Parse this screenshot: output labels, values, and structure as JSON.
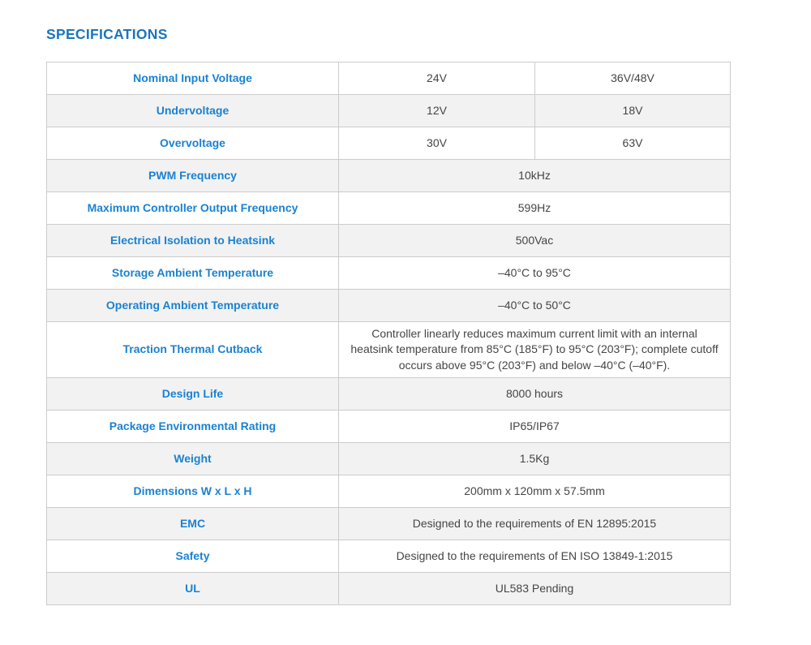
{
  "page": {
    "title": "SPECIFICATIONS"
  },
  "colors": {
    "heading": "#1b75bc",
    "label": "#1a82d2",
    "value": "#454545",
    "row_alt": "#f2f2f2",
    "border": "#cccccc"
  },
  "table": {
    "rows": [
      {
        "label": "Nominal Input Voltage",
        "values": [
          "24V",
          "36V/48V"
        ]
      },
      {
        "label": "Undervoltage",
        "values": [
          "12V",
          "18V"
        ]
      },
      {
        "label": "Overvoltage",
        "values": [
          "30V",
          "63V"
        ]
      },
      {
        "label": "PWM Frequency",
        "values": [
          "10kHz"
        ]
      },
      {
        "label": "Maximum Controller Output Frequency",
        "values": [
          "599Hz"
        ]
      },
      {
        "label": "Electrical Isolation to Heatsink",
        "values": [
          "500Vac"
        ]
      },
      {
        "label": "Storage Ambient Temperature",
        "values": [
          "–40°C to 95°C"
        ]
      },
      {
        "label": "Operating Ambient Temperature",
        "values": [
          "–40°C to 50°C"
        ]
      },
      {
        "label": "Traction Thermal Cutback",
        "values": [
          "Controller linearly reduces maximum current limit with an internal heatsink temperature from 85°C (185°F) to 95°C (203°F); complete cutoff occurs above 95°C (203°F) and below –40°C (–40°F)."
        ]
      },
      {
        "label": "Design Life",
        "values": [
          "8000 hours"
        ]
      },
      {
        "label": "Package Environmental Rating",
        "values": [
          "IP65/IP67"
        ]
      },
      {
        "label": "Weight",
        "values": [
          "1.5Kg"
        ]
      },
      {
        "label": "Dimensions W x L x H",
        "values": [
          "200mm x 120mm x 57.5mm"
        ]
      },
      {
        "label": "EMC",
        "values": [
          "Designed to the requirements of EN 12895:2015"
        ]
      },
      {
        "label": "Safety",
        "values": [
          "Designed to the requirements of EN ISO 13849-1:2015"
        ]
      },
      {
        "label": "UL",
        "values": [
          "UL583 Pending"
        ]
      }
    ]
  }
}
